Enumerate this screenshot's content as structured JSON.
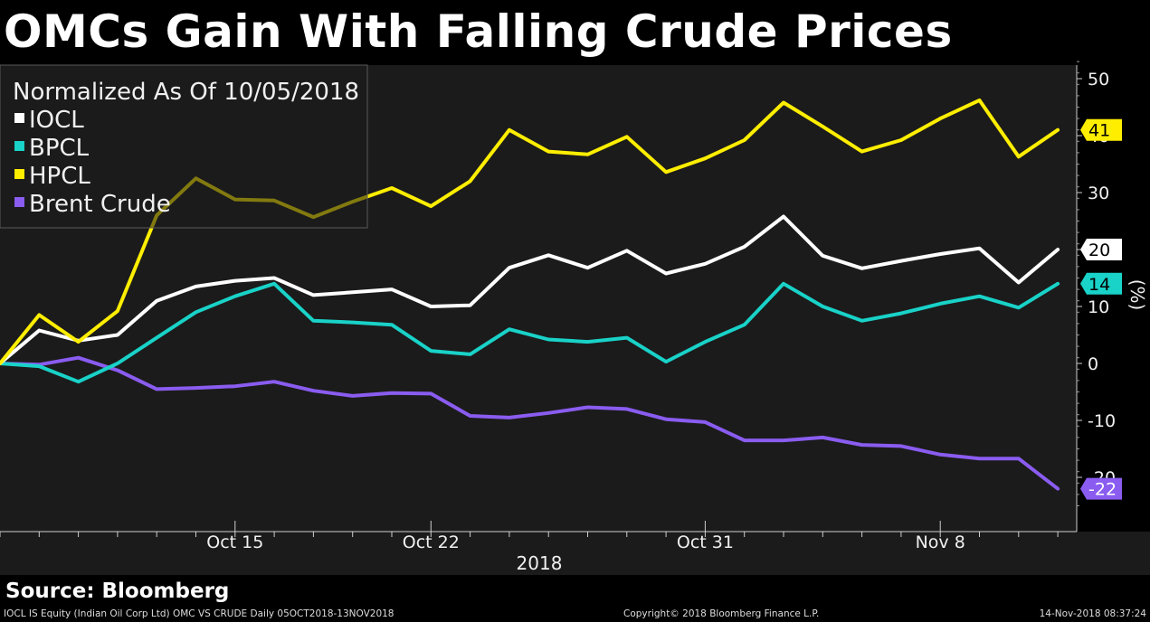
{
  "title": "OMCs Gain With Falling Crude Prices",
  "source_label": "Source: Bloomberg",
  "footer": {
    "left": "IOCL IS Equity (Indian Oil Corp Ltd) OMC VS CRUDE  Daily 05OCT2018-13NOV2018",
    "center": "Copyright© 2018 Bloomberg Finance L.P.",
    "right": "14-Nov-2018 08:37:24"
  },
  "chart_data": {
    "type": "line",
    "legend_title": "Normalized As Of 10/05/2018",
    "legend_position": "top-left",
    "ylabel": "(%)",
    "xlabel": "2018",
    "ylim": [
      -25,
      53
    ],
    "yticks": [
      50,
      40,
      30,
      20,
      10,
      0,
      -10,
      -20
    ],
    "grid": false,
    "x_tick_labels": [
      {
        "label": "Oct 15",
        "index": 6
      },
      {
        "label": "Oct 22",
        "index": 11
      },
      {
        "label": "Oct 31",
        "index": 18
      },
      {
        "label": "Nov 8",
        "index": 24
      }
    ],
    "x": [
      "10/05",
      "10/08",
      "10/09",
      "10/10",
      "10/11",
      "10/12",
      "10/15",
      "10/16",
      "10/17",
      "10/19",
      "10/22",
      "10/23",
      "10/24",
      "10/25",
      "10/26",
      "10/29",
      "10/30",
      "10/31",
      "11/01",
      "11/02",
      "11/05",
      "11/06",
      "11/07",
      "11/08",
      "11/09",
      "11/12",
      "11/13",
      "11/14"
    ],
    "series": [
      {
        "name": "IOCL",
        "color": "#ffffff",
        "end_label": "20",
        "values": [
          0,
          5.8,
          4.0,
          5.0,
          11.0,
          13.5,
          14.5,
          15.0,
          12.0,
          12.5,
          13.0,
          10.0,
          10.2,
          16.8,
          19.0,
          16.8,
          19.8,
          15.8,
          17.5,
          20.5,
          25.8,
          18.9,
          16.7,
          18.0,
          19.2,
          20.2,
          14.2,
          20.0
        ]
      },
      {
        "name": "BPCL",
        "color": "#19d2c8",
        "end_label": "14",
        "values": [
          0,
          -0.5,
          -3.2,
          0.0,
          4.5,
          9.0,
          11.8,
          14.0,
          7.5,
          7.2,
          6.8,
          2.2,
          1.6,
          6.0,
          4.2,
          3.8,
          4.5,
          0.3,
          3.8,
          6.8,
          14.0,
          10.0,
          7.5,
          8.8,
          10.5,
          11.8,
          9.8,
          14.0
        ]
      },
      {
        "name": "HPCL",
        "color": "#ffee00",
        "end_label": "41",
        "values": [
          0,
          8.5,
          3.8,
          9.2,
          26.0,
          32.5,
          28.8,
          28.6,
          25.7,
          28.4,
          30.8,
          27.6,
          32.0,
          41.0,
          37.2,
          36.7,
          39.8,
          33.6,
          36.0,
          39.2,
          45.8,
          41.6,
          37.2,
          39.2,
          43.0,
          46.2,
          36.3,
          41.0
        ]
      },
      {
        "name": "Brent Crude",
        "color": "#8a5cf0",
        "end_label": "-22",
        "values": [
          0,
          -0.2,
          1.0,
          -1.2,
          -4.5,
          -4.3,
          -4.0,
          -3.2,
          -4.8,
          -5.7,
          -5.2,
          -5.3,
          -9.2,
          -9.5,
          -8.7,
          -7.7,
          -8.0,
          -9.8,
          -10.3,
          -13.5,
          -13.5,
          -13.0,
          -14.3,
          -14.5,
          -16.0,
          -16.7,
          -16.7,
          -22.0
        ]
      }
    ]
  }
}
